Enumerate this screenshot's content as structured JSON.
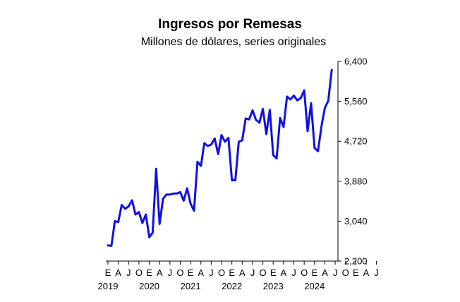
{
  "chart_data": {
    "type": "line",
    "title": "Ingresos por Remesas",
    "subtitle": "Millones de dólares, series originales",
    "xlabel": "",
    "ylabel": "",
    "ylim": [
      2200,
      6400
    ],
    "y_ticks": [
      "6,400",
      "5,560",
      "4,720",
      "3,880",
      "3,040",
      "2,200"
    ],
    "y_tick_values": [
      6400,
      5560,
      4720,
      3880,
      3040,
      2200
    ],
    "y_axis_side": "right",
    "month_ticks": [
      "E",
      "A",
      "J",
      "O",
      "E",
      "A",
      "J",
      "O",
      "E",
      "A",
      "J",
      "O",
      "E",
      "A",
      "J",
      "O",
      "E",
      "A",
      "J",
      "O",
      "E",
      "A",
      "J",
      "O",
      "E",
      "A",
      "J"
    ],
    "year_labels": [
      "2019",
      "2020",
      "2021",
      "2022",
      "2023",
      "2024"
    ],
    "line_color": "#1010e6",
    "grid": false,
    "series": [
      {
        "x": [
          "2019-01",
          "2019-02",
          "2019-03",
          "2019-04",
          "2019-05",
          "2019-06",
          "2019-07",
          "2019-08",
          "2019-09",
          "2019-10",
          "2019-11",
          "2019-12",
          "2020-01",
          "2020-02",
          "2020-03",
          "2020-04",
          "2020-05",
          "2020-06",
          "2020-07",
          "2020-08",
          "2020-09",
          "2020-10",
          "2020-11",
          "2020-12",
          "2021-01",
          "2021-02",
          "2021-03",
          "2021-04",
          "2021-05",
          "2021-06",
          "2021-07",
          "2021-08",
          "2021-09",
          "2021-10",
          "2021-11",
          "2021-12",
          "2022-01",
          "2022-02",
          "2022-03",
          "2022-04",
          "2022-05",
          "2022-06",
          "2022-07",
          "2022-08",
          "2022-09",
          "2022-10",
          "2022-11",
          "2022-12",
          "2023-01",
          "2023-02",
          "2023-03",
          "2023-04",
          "2023-05",
          "2023-06",
          "2023-07",
          "2023-08",
          "2023-09",
          "2023-10",
          "2023-11",
          "2023-12",
          "2024-01",
          "2024-02",
          "2024-03",
          "2024-04",
          "2024-05",
          "2024-06"
        ],
        "values": [
          2530,
          2520,
          3040,
          3020,
          3380,
          3300,
          3350,
          3480,
          3180,
          3230,
          3000,
          3180,
          2700,
          2800,
          4140,
          2980,
          3510,
          3600,
          3600,
          3620,
          3620,
          3650,
          3470,
          3730,
          3410,
          3260,
          4290,
          4200,
          4680,
          4620,
          4650,
          4780,
          4450,
          4850,
          4710,
          4790,
          3900,
          3900,
          4710,
          4740,
          5200,
          5180,
          5370,
          5170,
          5110,
          5400,
          4870,
          5380,
          4430,
          4360,
          5210,
          5020,
          5660,
          5600,
          5680,
          5580,
          5630,
          5790,
          4930,
          5520,
          4580,
          4510,
          5030,
          5420,
          5570,
          6220
        ]
      }
    ]
  }
}
